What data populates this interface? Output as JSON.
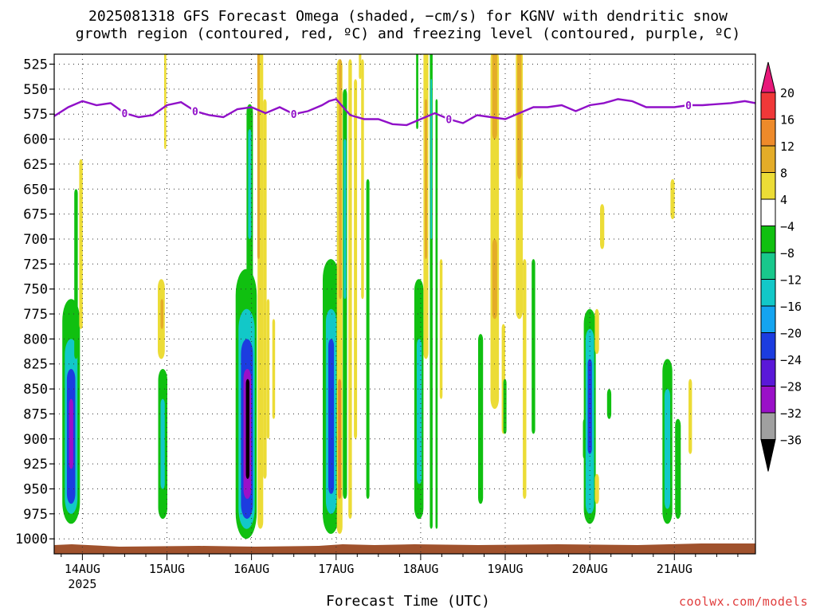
{
  "title": {
    "line1": "2025081318 GFS Forecast Omega (shaded, −cm/s) for KGNV with dendritic snow",
    "line2": "growth region (contoured, red, ºC) and freezing level (contoured, purple, ºC)"
  },
  "footer": {
    "xlabel": "Forecast Time (UTC)",
    "credit": "coolwx.com/models"
  },
  "chart_data": {
    "type": "heatmap",
    "x_axis": {
      "label": "Forecast Time (UTC)",
      "range_hours": [
        -2,
        197
      ],
      "ticks": [
        {
          "hour": 6,
          "label": "14AUG",
          "sublabel": "2025"
        },
        {
          "hour": 30,
          "label": "15AUG"
        },
        {
          "hour": 54,
          "label": "16AUG"
        },
        {
          "hour": 78,
          "label": "17AUG"
        },
        {
          "hour": 102,
          "label": "18AUG"
        },
        {
          "hour": 126,
          "label": "19AUG"
        },
        {
          "hour": 150,
          "label": "20AUG"
        },
        {
          "hour": 174,
          "label": "21AUG"
        }
      ]
    },
    "y_axis": {
      "unit": "hPa",
      "range": [
        1015,
        515
      ],
      "inverted": true,
      "ticks": [
        525,
        550,
        575,
        600,
        625,
        650,
        675,
        700,
        725,
        750,
        775,
        800,
        825,
        850,
        875,
        900,
        925,
        950,
        975,
        1000
      ]
    },
    "grid": true,
    "colorbar": {
      "levels": [
        -36,
        -32,
        -28,
        -24,
        -20,
        -16,
        -12,
        -8,
        -4,
        4,
        8,
        12,
        16,
        20
      ],
      "colors": [
        "#000000",
        "#a0a0a0",
        "#9a10c8",
        "#5a18d8",
        "#1c3ce0",
        "#14a4f0",
        "#12c8c8",
        "#18c88c",
        "#10c010",
        "#ffffff",
        "#ecdc36",
        "#e4ac28",
        "#ee8a2a",
        "#f03838",
        "#e8187a"
      ],
      "tick_labels": [
        "20",
        "16",
        "12",
        "8",
        "4",
        "−4",
        "−8",
        "−12",
        "−16",
        "−20",
        "−24",
        "−28",
        "−32",
        "−36"
      ]
    },
    "freezing_level": {
      "label": "0",
      "color": "#9010c8",
      "hours": [
        -2,
        2,
        6,
        10,
        14,
        18,
        22,
        26,
        30,
        34,
        38,
        42,
        46,
        50,
        54,
        58,
        62,
        66,
        70,
        74,
        76,
        78,
        82,
        86,
        90,
        94,
        98,
        102,
        106,
        110,
        114,
        118,
        122,
        126,
        130,
        134,
        138,
        142,
        146,
        150,
        154,
        158,
        162,
        166,
        170,
        174,
        178,
        182,
        186,
        190,
        194,
        197
      ],
      "pressure": [
        577,
        568,
        562,
        566,
        564,
        574,
        578,
        576,
        566,
        563,
        572,
        576,
        578,
        570,
        568,
        574,
        568,
        575,
        572,
        566,
        562,
        560,
        576,
        580,
        580,
        585,
        586,
        580,
        574,
        580,
        584,
        576,
        578,
        580,
        574,
        568,
        568,
        566,
        572,
        566,
        564,
        560,
        562,
        568,
        568,
        568,
        566,
        566,
        565,
        564,
        562,
        564
      ]
    },
    "omega_cells": [
      {
        "h": 2.8,
        "p0": 760,
        "p1": 985,
        "w": 5.0,
        "v": -8
      },
      {
        "h": 2.8,
        "p0": 800,
        "p1": 975,
        "w": 3.6,
        "v": -14
      },
      {
        "h": 2.8,
        "p0": 830,
        "p1": 965,
        "w": 2.4,
        "v": -22
      },
      {
        "h": 2.8,
        "p0": 860,
        "p1": 930,
        "w": 1.2,
        "v": -30
      },
      {
        "h": 4.2,
        "p0": 650,
        "p1": 820,
        "w": 1.0,
        "v": -6
      },
      {
        "h": 5.6,
        "p0": 620,
        "p1": 790,
        "w": 1.0,
        "v": 6
      },
      {
        "h": 28.8,
        "p0": 830,
        "p1": 980,
        "w": 2.6,
        "v": -8
      },
      {
        "h": 28.8,
        "p0": 860,
        "p1": 950,
        "w": 1.2,
        "v": -14
      },
      {
        "h": 28.4,
        "p0": 740,
        "p1": 820,
        "w": 2.0,
        "v": 6
      },
      {
        "h": 28.6,
        "p0": 760,
        "p1": 790,
        "w": 0.8,
        "v": 10
      },
      {
        "h": 29.5,
        "p0": 510,
        "p1": 610,
        "w": 0.6,
        "v": 6
      },
      {
        "h": 52.5,
        "p0": 730,
        "p1": 1000,
        "w": 6.0,
        "v": -8
      },
      {
        "h": 52.6,
        "p0": 770,
        "p1": 990,
        "w": 4.6,
        "v": -14
      },
      {
        "h": 52.7,
        "p0": 800,
        "p1": 980,
        "w": 3.4,
        "v": -22
      },
      {
        "h": 52.8,
        "p0": 830,
        "p1": 960,
        "w": 2.2,
        "v": -30
      },
      {
        "h": 52.9,
        "p0": 840,
        "p1": 940,
        "w": 1.0,
        "v": -38
      },
      {
        "h": 53.5,
        "p0": 565,
        "p1": 760,
        "w": 1.8,
        "v": -8
      },
      {
        "h": 53.5,
        "p0": 590,
        "p1": 700,
        "w": 0.9,
        "v": -14
      },
      {
        "h": 56.5,
        "p0": 510,
        "p1": 990,
        "w": 1.6,
        "v": 6
      },
      {
        "h": 56.0,
        "p0": 510,
        "p1": 720,
        "w": 0.7,
        "v": 10
      },
      {
        "h": 57.8,
        "p0": 560,
        "p1": 940,
        "w": 1.0,
        "v": 6
      },
      {
        "h": 58.7,
        "p0": 760,
        "p1": 900,
        "w": 0.8,
        "v": 6
      },
      {
        "h": 60.3,
        "p0": 780,
        "p1": 880,
        "w": 0.8,
        "v": 6
      },
      {
        "h": 76.5,
        "p0": 720,
        "p1": 995,
        "w": 4.6,
        "v": -8
      },
      {
        "h": 76.6,
        "p0": 770,
        "p1": 975,
        "w": 3.0,
        "v": -14
      },
      {
        "h": 76.6,
        "p0": 800,
        "p1": 955,
        "w": 1.6,
        "v": -22
      },
      {
        "h": 79.0,
        "p0": 520,
        "p1": 995,
        "w": 1.6,
        "v": 6
      },
      {
        "h": 79.0,
        "p0": 840,
        "p1": 960,
        "w": 0.9,
        "v": 12
      },
      {
        "h": 79.2,
        "p0": 520,
        "p1": 760,
        "w": 0.8,
        "v": 10
      },
      {
        "h": 80.5,
        "p0": 550,
        "p1": 960,
        "w": 1.2,
        "v": -8
      },
      {
        "h": 80.5,
        "p0": 600,
        "p1": 760,
        "w": 0.7,
        "v": -14
      },
      {
        "h": 82.0,
        "p0": 520,
        "p1": 980,
        "w": 1.0,
        "v": 6
      },
      {
        "h": 83.5,
        "p0": 540,
        "p1": 900,
        "w": 0.9,
        "v": 6
      },
      {
        "h": 85.5,
        "p0": 520,
        "p1": 760,
        "w": 0.8,
        "v": 6
      },
      {
        "h": 87.0,
        "p0": 640,
        "p1": 960,
        "w": 0.9,
        "v": -8
      },
      {
        "h": 84.8,
        "p0": 510,
        "p1": 540,
        "w": 0.7,
        "v": 6
      },
      {
        "h": 101.5,
        "p0": 740,
        "p1": 980,
        "w": 2.6,
        "v": -8
      },
      {
        "h": 101.6,
        "p0": 800,
        "p1": 945,
        "w": 1.4,
        "v": -16
      },
      {
        "h": 101.0,
        "p0": 510,
        "p1": 590,
        "w": 0.6,
        "v": -6
      },
      {
        "h": 103.5,
        "p0": 510,
        "p1": 820,
        "w": 1.4,
        "v": 6
      },
      {
        "h": 103.5,
        "p0": 560,
        "p1": 720,
        "w": 0.7,
        "v": 10
      },
      {
        "h": 105.0,
        "p0": 510,
        "p1": 990,
        "w": 0.8,
        "v": -8
      },
      {
        "h": 105.0,
        "p0": 540,
        "p1": 700,
        "w": 0.4,
        "v": -14
      },
      {
        "h": 106.5,
        "p0": 560,
        "p1": 990,
        "w": 0.6,
        "v": -6
      },
      {
        "h": 107.8,
        "p0": 720,
        "p1": 860,
        "w": 0.8,
        "v": 6
      },
      {
        "h": 119.0,
        "p0": 795,
        "p1": 965,
        "w": 1.4,
        "v": -8
      },
      {
        "h": 123.0,
        "p0": 510,
        "p1": 870,
        "w": 2.4,
        "v": 6
      },
      {
        "h": 123.0,
        "p0": 510,
        "p1": 600,
        "w": 1.4,
        "v": 10
      },
      {
        "h": 123.0,
        "p0": 700,
        "p1": 780,
        "w": 1.4,
        "v": 10
      },
      {
        "h": 125.5,
        "p0": 785,
        "p1": 895,
        "w": 1.0,
        "v": 6
      },
      {
        "h": 125.9,
        "p0": 840,
        "p1": 895,
        "w": 0.9,
        "v": -8
      },
      {
        "h": 130.0,
        "p0": 510,
        "p1": 780,
        "w": 2.0,
        "v": 6
      },
      {
        "h": 130.0,
        "p0": 510,
        "p1": 640,
        "w": 1.2,
        "v": 10
      },
      {
        "h": 131.5,
        "p0": 720,
        "p1": 960,
        "w": 1.0,
        "v": 6
      },
      {
        "h": 134.0,
        "p0": 720,
        "p1": 895,
        "w": 1.0,
        "v": -8
      },
      {
        "h": 148.5,
        "p0": 880,
        "p1": 920,
        "w": 0.9,
        "v": -8
      },
      {
        "h": 150.0,
        "p0": 770,
        "p1": 985,
        "w": 3.4,
        "v": -8
      },
      {
        "h": 150.0,
        "p0": 790,
        "p1": 975,
        "w": 2.4,
        "v": -14
      },
      {
        "h": 150.0,
        "p0": 820,
        "p1": 915,
        "w": 1.2,
        "v": -22
      },
      {
        "h": 152.0,
        "p0": 770,
        "p1": 815,
        "w": 1.2,
        "v": 6
      },
      {
        "h": 152.0,
        "p0": 935,
        "p1": 965,
        "w": 1.2,
        "v": 6
      },
      {
        "h": 153.5,
        "p0": 665,
        "p1": 710,
        "w": 1.2,
        "v": 6
      },
      {
        "h": 155.5,
        "p0": 850,
        "p1": 880,
        "w": 1.2,
        "v": -8
      },
      {
        "h": 172.0,
        "p0": 820,
        "p1": 985,
        "w": 2.8,
        "v": -8
      },
      {
        "h": 172.0,
        "p0": 850,
        "p1": 970,
        "w": 1.6,
        "v": -14
      },
      {
        "h": 173.5,
        "p0": 640,
        "p1": 680,
        "w": 1.2,
        "v": 6
      },
      {
        "h": 175.0,
        "p0": 880,
        "p1": 980,
        "w": 1.6,
        "v": -8
      },
      {
        "h": 178.5,
        "p0": 840,
        "p1": 915,
        "w": 1.0,
        "v": 6
      }
    ]
  }
}
